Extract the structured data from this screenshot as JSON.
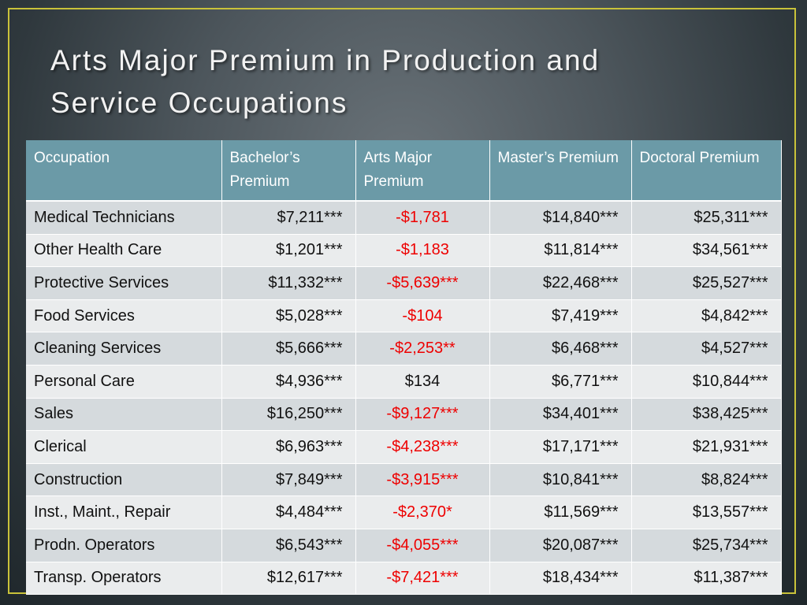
{
  "slide": {
    "title": "Arts Major Premium in Production and\nService Occupations"
  },
  "colors": {
    "header_bg": "#6b9aa7",
    "row_odd": "#d5dadd",
    "row_even": "#eaeced",
    "negative_text": "#ee0000",
    "frame": "#c9c23a"
  },
  "table": {
    "headers": [
      "Occupation",
      "Bachelor’s Premium",
      "Arts Major Premium",
      "Master’s Premium",
      "Doctoral Premium"
    ],
    "rows": [
      {
        "occupation": "Medical Technicians",
        "bachelors": "$7,211***",
        "arts": "-$1,781",
        "masters": "$14,840***",
        "doctoral": "$25,311***"
      },
      {
        "occupation": "Other Health Care",
        "bachelors": "$1,201***",
        "arts": "-$1,183",
        "masters": "$11,814***",
        "doctoral": "$34,561***"
      },
      {
        "occupation": "Protective Services",
        "bachelors": "$11,332***",
        "arts": "-$5,639***",
        "masters": "$22,468***",
        "doctoral": "$25,527***"
      },
      {
        "occupation": "Food Services",
        "bachelors": "$5,028***",
        "arts": "-$104",
        "masters": "$7,419***",
        "doctoral": "$4,842***"
      },
      {
        "occupation": "Cleaning Services",
        "bachelors": "$5,666***",
        "arts": "-$2,253**",
        "masters": "$6,468***",
        "doctoral": "$4,527***"
      },
      {
        "occupation": "Personal Care",
        "bachelors": "$4,936***",
        "arts": "$134",
        "masters": "$6,771***",
        "doctoral": "$10,844***"
      },
      {
        "occupation": "Sales",
        "bachelors": "$16,250***",
        "arts": "-$9,127***",
        "masters": "$34,401***",
        "doctoral": "$38,425***"
      },
      {
        "occupation": "Clerical",
        "bachelors": "$6,963***",
        "arts": "-$4,238***",
        "masters": "$17,171***",
        "doctoral": "$21,931***"
      },
      {
        "occupation": "Construction",
        "bachelors": "$7,849***",
        "arts": "-$3,915***",
        "masters": "$10,841***",
        "doctoral": "$8,824***"
      },
      {
        "occupation": "Inst., Maint., Repair",
        "bachelors": "$4,484***",
        "arts": "-$2,370*",
        "masters": "$11,569***",
        "doctoral": "$13,557***"
      },
      {
        "occupation": "Prodn. Operators",
        "bachelors": "$6,543***",
        "arts": "-$4,055***",
        "masters": "$20,087***",
        "doctoral": "$25,734***"
      },
      {
        "occupation": "Transp. Operators",
        "bachelors": "$12,617***",
        "arts": "-$7,421***",
        "masters": "$18,434***",
        "doctoral": "$11,387***"
      }
    ]
  }
}
